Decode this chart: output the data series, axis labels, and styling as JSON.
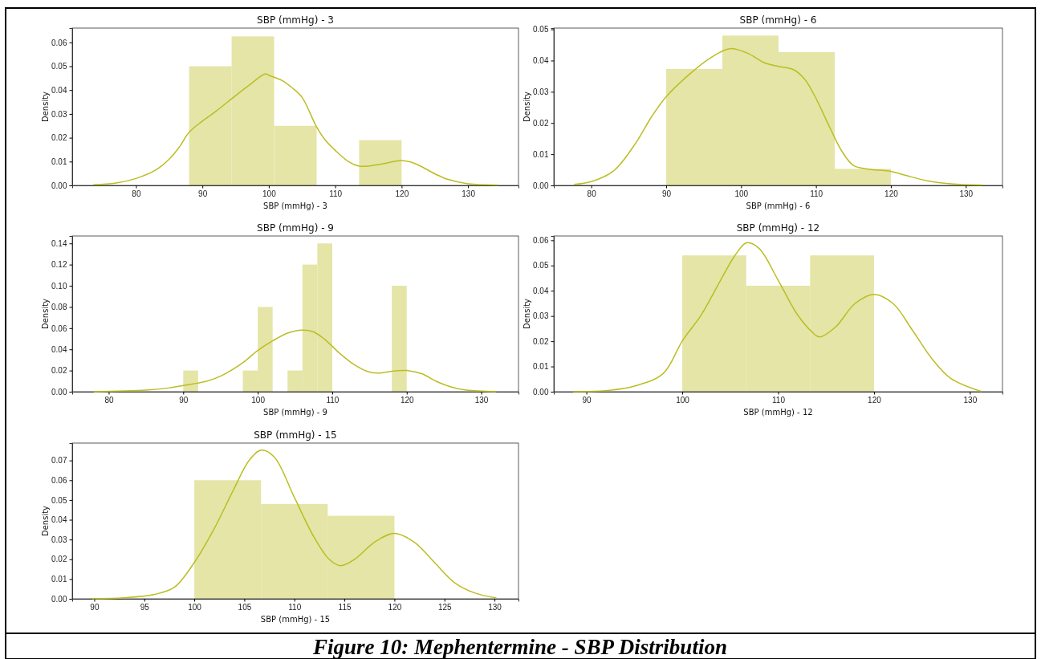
{
  "chart_data": [
    {
      "type": "histogram",
      "title": "SBP (mmHg) - 3",
      "xlabel": "SBP (mmHg) - 3",
      "ylabel": "Density",
      "color": "#e4e5a7",
      "bins": [
        88,
        94.4,
        100.8,
        107.2,
        113.6,
        120
      ],
      "values": [
        0.05,
        0.0625,
        0.025,
        0,
        0.019
      ],
      "xlim": [
        70.4,
        137.6
      ],
      "ylim": [
        0,
        0.066
      ],
      "xticks": [
        80,
        90,
        100,
        110,
        120,
        130
      ],
      "yticks": [
        {
          "value": 0,
          "label": "0.00"
        },
        {
          "value": 0.01,
          "label": "0.01"
        },
        {
          "value": 0.02,
          "label": "0.02"
        },
        {
          "value": 0.03,
          "label": "0.03"
        },
        {
          "value": 0.04,
          "label": "0.04"
        },
        {
          "value": 0.05,
          "label": "0.05"
        },
        {
          "value": 0.06,
          "label": "0.06"
        }
      ],
      "grid": false,
      "series": [
        {
          "type": "line",
          "color": "#bcbd22",
          "x": [
            73.6,
            77,
            80,
            83,
            85,
            86.5,
            88,
            90,
            92,
            95,
            97,
            99.5,
            100,
            102,
            103.5,
            105,
            107.2,
            108.5,
            110,
            112,
            113.6,
            115,
            117,
            120,
            122,
            125,
            127,
            130,
            134.5
          ],
          "values": [
            0.0003,
            0.001,
            0.0029,
            0.0065,
            0.011,
            0.016,
            0.0223,
            0.027,
            0.031,
            0.0377,
            0.042,
            0.0468,
            0.0462,
            0.044,
            0.041,
            0.037,
            0.0245,
            0.019,
            0.0147,
            0.01,
            0.0081,
            0.0081,
            0.009,
            0.0104,
            0.0092,
            0.0049,
            0.0025,
            0.0007,
            0.0002
          ]
        }
      ]
    },
    {
      "type": "histogram",
      "title": "SBP (mmHg) - 6",
      "xlabel": "SBP (mmHg) - 6",
      "ylabel": "Density",
      "color": "#e4e5a7",
      "bins": [
        90,
        97.5,
        105,
        112.5,
        120
      ],
      "values": [
        0.0373,
        0.048,
        0.0427,
        0.0053
      ],
      "xlim": [
        75,
        134.9
      ],
      "ylim": [
        0,
        0.0504
      ],
      "xticks": [
        80,
        90,
        100,
        110,
        120,
        130
      ],
      "yticks": [
        {
          "value": 0,
          "label": "0.00"
        },
        {
          "value": 0.01,
          "label": "0.01"
        },
        {
          "value": 0.02,
          "label": "0.02"
        },
        {
          "value": 0.03,
          "label": "0.03"
        },
        {
          "value": 0.04,
          "label": "0.04"
        },
        {
          "value": 0.05,
          "label": "0.05"
        }
      ],
      "grid": false,
      "series": [
        {
          "type": "line",
          "color": "#bcbd22",
          "x": [
            77.7,
            80,
            83,
            86,
            88,
            90,
            93,
            96,
            98.5,
            101,
            103,
            105,
            107,
            108.5,
            110,
            112,
            113.5,
            115,
            117,
            120,
            122,
            125,
            128,
            132.2
          ],
          "values": [
            0.0003,
            0.0012,
            0.0047,
            0.0138,
            0.0218,
            0.0284,
            0.0354,
            0.041,
            0.0438,
            0.0422,
            0.0394,
            0.0381,
            0.0371,
            0.034,
            0.0279,
            0.0178,
            0.0108,
            0.0064,
            0.0052,
            0.0045,
            0.0032,
            0.0014,
            0.0005,
            0.0001
          ]
        }
      ]
    },
    {
      "type": "histogram",
      "title": "SBP (mmHg) - 9",
      "xlabel": "SBP (mmHg) - 9",
      "ylabel": "Density",
      "color": "#e4e5a7",
      "bins": [
        90,
        92,
        94,
        96,
        98,
        100,
        102,
        104,
        106,
        108,
        110,
        112,
        114,
        116,
        118,
        120
      ],
      "values": [
        0.02,
        0,
        0,
        0,
        0.02,
        0.08,
        0,
        0.02,
        0.12,
        0.14,
        0,
        0,
        0,
        0,
        0.1
      ],
      "xlim": [
        75.1,
        135
      ],
      "ylim": [
        0,
        0.147
      ],
      "xticks": [
        80,
        90,
        100,
        110,
        120,
        130
      ],
      "yticks": [
        {
          "value": 0,
          "label": "0.00"
        },
        {
          "value": 0.02,
          "label": "0.02"
        },
        {
          "value": 0.04,
          "label": "0.04"
        },
        {
          "value": 0.06,
          "label": "0.06"
        },
        {
          "value": 0.08,
          "label": "0.08"
        },
        {
          "value": 0.1,
          "label": "0.10"
        },
        {
          "value": 0.12,
          "label": "0.12"
        },
        {
          "value": 0.14,
          "label": "0.14"
        }
      ],
      "grid": false,
      "series": [
        {
          "type": "line",
          "color": "#bcbd22",
          "x": [
            78,
            85,
            88,
            90,
            93,
            95,
            98,
            100,
            102,
            104,
            106,
            107.5,
            109,
            111,
            113,
            115,
            116.5,
            118,
            120,
            122,
            124,
            126,
            128,
            132
          ],
          "values": [
            0,
            0.0015,
            0.0035,
            0.0059,
            0.0097,
            0.0147,
            0.0274,
            0.039,
            0.048,
            0.0553,
            0.0582,
            0.0565,
            0.0494,
            0.0362,
            0.0253,
            0.0185,
            0.0176,
            0.0194,
            0.02,
            0.017,
            0.0097,
            0.0044,
            0.0015,
            0.0001
          ]
        }
      ]
    },
    {
      "type": "histogram",
      "title": "SBP (mmHg) - 12",
      "xlabel": "SBP (mmHg) - 12",
      "ylabel": "Density",
      "color": "#e4e5a7",
      "bins": [
        100,
        106.67,
        113.33,
        120
      ],
      "values": [
        0.054,
        0.042,
        0.054
      ],
      "xlim": [
        86.6,
        133.4
      ],
      "ylim": [
        0,
        0.0617
      ],
      "xticks": [
        90,
        100,
        110,
        120,
        130
      ],
      "yticks": [
        {
          "value": 0,
          "label": "0.00"
        },
        {
          "value": 0.01,
          "label": "0.01"
        },
        {
          "value": 0.02,
          "label": "0.02"
        },
        {
          "value": 0.03,
          "label": "0.03"
        },
        {
          "value": 0.04,
          "label": "0.04"
        },
        {
          "value": 0.05,
          "label": "0.05"
        },
        {
          "value": 0.06,
          "label": "0.06"
        }
      ],
      "grid": false,
      "series": [
        {
          "type": "line",
          "color": "#bcbd22",
          "x": [
            88.6,
            92,
            95,
            98,
            100,
            102,
            104,
            105.5,
            106.7,
            108,
            110,
            112,
            113.5,
            114.3,
            116,
            118,
            120,
            122,
            124,
            126,
            128,
            131.2
          ],
          "values": [
            0.0001,
            0.0004,
            0.0022,
            0.0072,
            0.0201,
            0.0306,
            0.0442,
            0.054,
            0.059,
            0.0568,
            0.0442,
            0.0306,
            0.0238,
            0.0217,
            0.0257,
            0.0349,
            0.0386,
            0.0349,
            0.0244,
            0.0133,
            0.0053,
            0.0001
          ]
        }
      ]
    },
    {
      "type": "histogram",
      "title": "SBP (mmHg) - 15",
      "xlabel": "SBP (mmHg) - 15",
      "ylabel": "Density",
      "color": "#e4e5a7",
      "bins": [
        100,
        106.67,
        113.33,
        120
      ],
      "values": [
        0.06,
        0.048,
        0.042
      ],
      "xlim": [
        87.8,
        132.4
      ],
      "ylim": [
        0,
        0.0788
      ],
      "xticks": [
        90,
        95,
        100,
        105,
        110,
        115,
        120,
        125,
        130
      ],
      "yticks": [
        {
          "value": 0,
          "label": "0.00"
        },
        {
          "value": 0.01,
          "label": "0.01"
        },
        {
          "value": 0.02,
          "label": "0.02"
        },
        {
          "value": 0.03,
          "label": "0.03"
        },
        {
          "value": 0.04,
          "label": "0.04"
        },
        {
          "value": 0.05,
          "label": "0.05"
        },
        {
          "value": 0.06,
          "label": "0.06"
        },
        {
          "value": 0.07,
          "label": "0.07"
        }
      ],
      "grid": false,
      "series": [
        {
          "type": "line",
          "color": "#bcbd22",
          "x": [
            89.8,
            93,
            96,
            98,
            100,
            102,
            104,
            105.5,
            106.7,
            108,
            110,
            112,
            113.5,
            114.6,
            116,
            118,
            120,
            122,
            124,
            126,
            128,
            130.2
          ],
          "values": [
            0.0001,
            0.0005,
            0.0022,
            0.0058,
            0.0184,
            0.0356,
            0.056,
            0.0702,
            0.0752,
            0.0717,
            0.0513,
            0.0309,
            0.0199,
            0.0168,
            0.0199,
            0.0286,
            0.0331,
            0.0286,
            0.0184,
            0.0082,
            0.003,
            0.0004
          ]
        }
      ],
      "annotations": [
        "Figure 10: Mephentermine - SBP Distribution"
      ]
    }
  ]
}
